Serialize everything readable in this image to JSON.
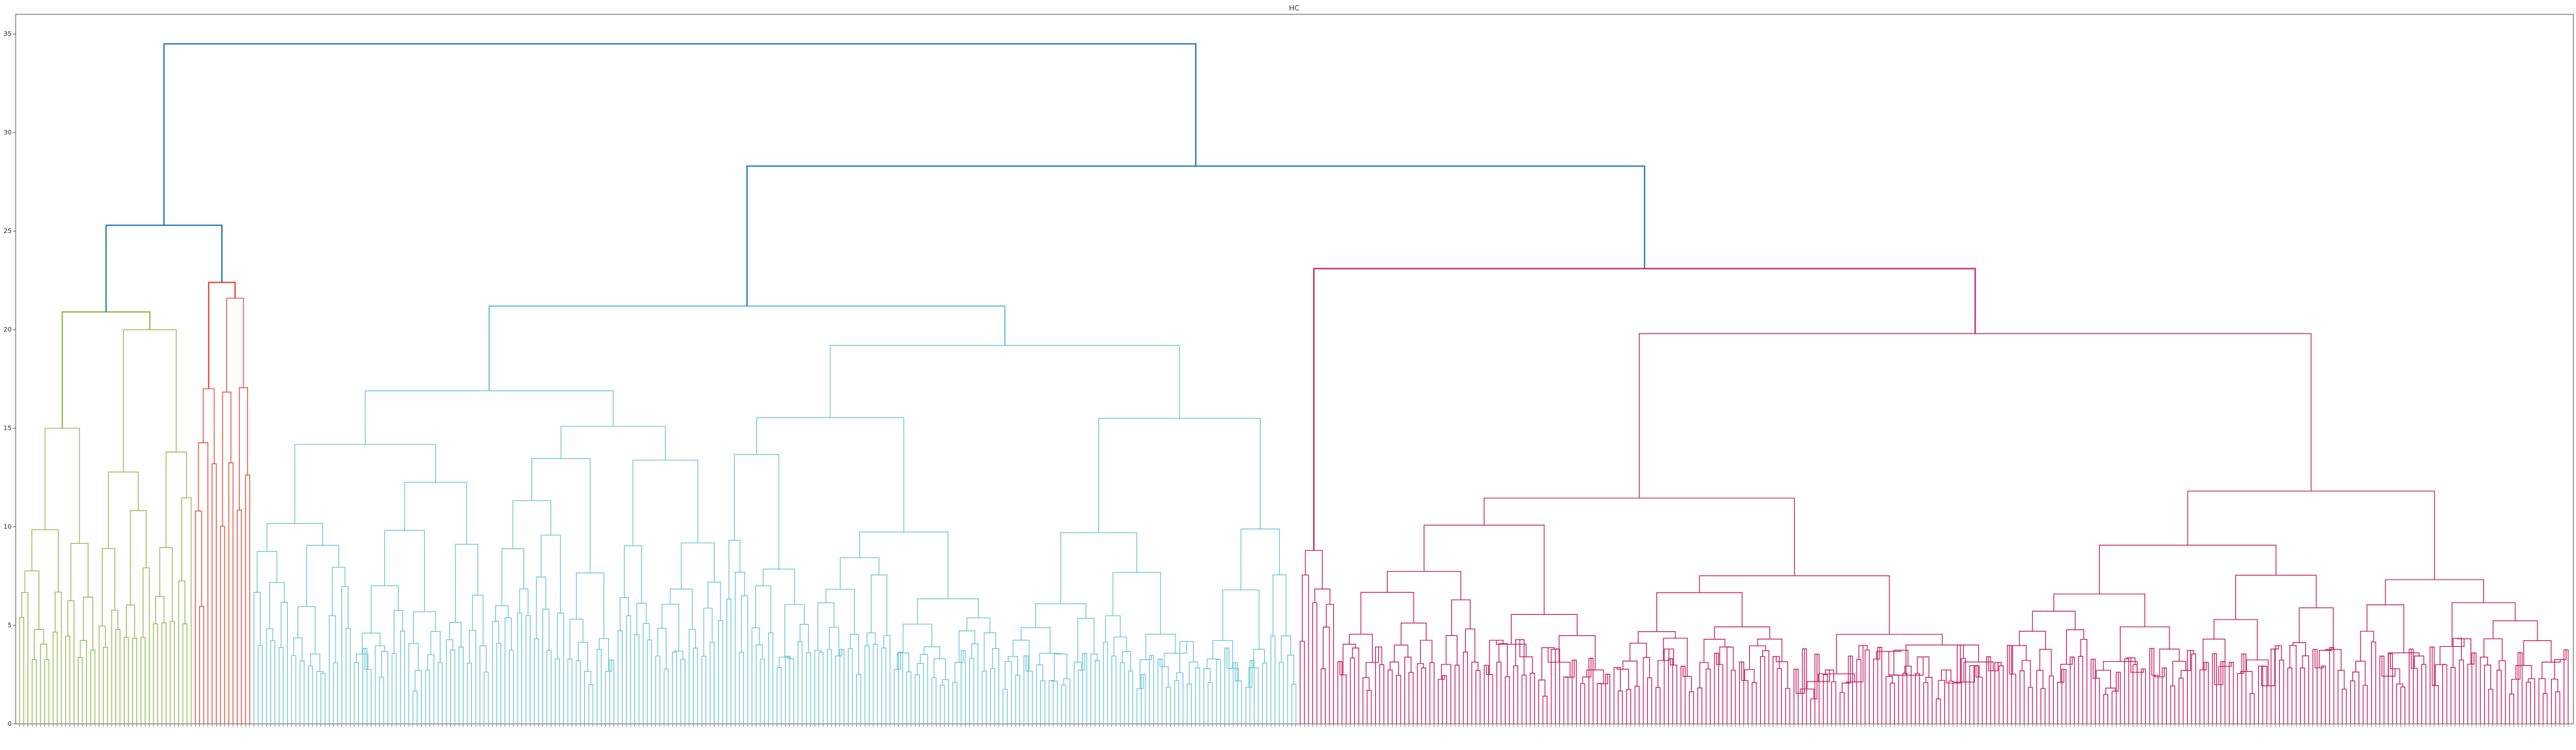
{
  "chart_data": {
    "type": "dendrogram",
    "title": "HC",
    "xlabel": "",
    "ylabel": "",
    "ylim": [
      0,
      36
    ],
    "yticks": [
      0,
      5,
      10,
      15,
      20,
      25,
      30,
      35
    ],
    "grid": false,
    "legend": "none",
    "leaf_count": 610,
    "colors": {
      "root_links": "#1f77b4",
      "cluster_green": "#8bb84a",
      "cluster_red": "#e0442f",
      "cluster_cyan": "#6cc3d5",
      "cluster_magenta": "#c2185b"
    },
    "clusters": [
      {
        "color": "cluster_green",
        "leaves": 42,
        "top_height": 20.9,
        "left_child_height": 15.0,
        "right_child_height": 20.0
      },
      {
        "color": "cluster_red",
        "leaves": 14,
        "top_height": 22.4,
        "left_child_height": 17.0,
        "right_child_height": 21.6
      },
      {
        "color": "cluster_cyan",
        "leaves": 250,
        "top_height": 21.2,
        "left_child_height": 16.9,
        "right_child_height": 19.2
      },
      {
        "color": "cluster_magenta",
        "leaves": 304,
        "top_height": 23.1,
        "left_child_height": 8.8,
        "right_child_height": 19.8
      }
    ],
    "merges": [
      {
        "left": "cluster_green",
        "right": "cluster_red",
        "height": 25.3
      },
      {
        "left": "cluster_cyan",
        "right": "cluster_magenta",
        "height": 28.3
      },
      {
        "left": "green_red",
        "right": "cyan_magenta",
        "height": 34.5
      }
    ]
  }
}
